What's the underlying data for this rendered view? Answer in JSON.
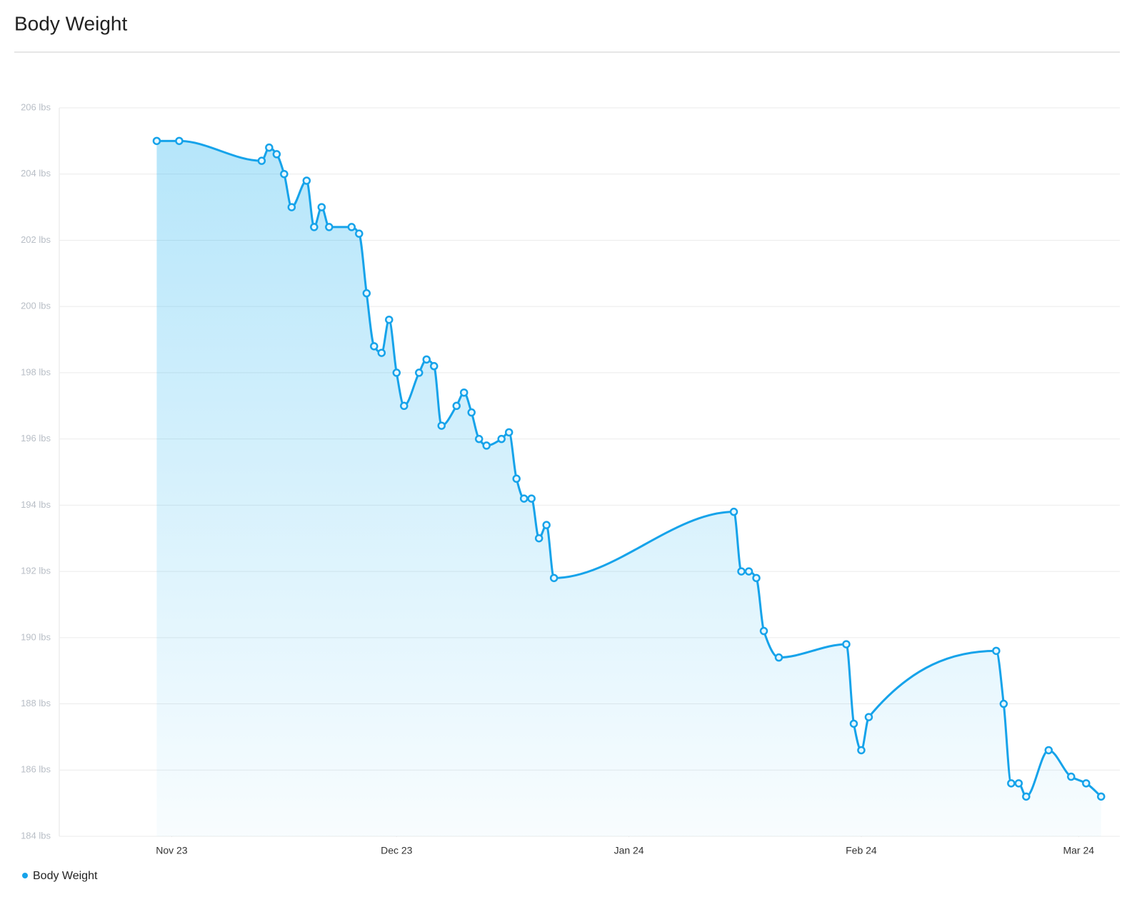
{
  "chart_data": {
    "type": "area",
    "title": "Body Weight",
    "x": [
      -2,
      1,
      12,
      13,
      14,
      15,
      16,
      18,
      19,
      20,
      21,
      24,
      25,
      26,
      27,
      28,
      29,
      30,
      31,
      33,
      34,
      35,
      36,
      38,
      39,
      40,
      41,
      42,
      44,
      45,
      46,
      47,
      48,
      49,
      50,
      51,
      75,
      76,
      77,
      78,
      79,
      81,
      90,
      91,
      92,
      93,
      110,
      111,
      112,
      113,
      114,
      117,
      120,
      122,
      124
    ],
    "series": [
      {
        "name": "Body Weight",
        "color": "#16a3ea",
        "values": [
          205.0,
          205.0,
          204.4,
          204.8,
          204.6,
          204.0,
          203.0,
          203.8,
          202.4,
          203.0,
          202.4,
          202.4,
          202.2,
          200.4,
          198.8,
          198.6,
          199.6,
          198.0,
          197.0,
          198.0,
          198.4,
          198.2,
          196.4,
          197.0,
          197.4,
          196.8,
          196.0,
          195.8,
          196.0,
          196.2,
          194.8,
          194.2,
          194.2,
          193.0,
          193.4,
          191.8,
          193.8,
          192.0,
          192.0,
          191.8,
          190.2,
          189.4,
          189.8,
          187.4,
          186.6,
          187.6,
          189.6,
          188.0,
          185.6,
          185.6,
          185.2,
          186.6,
          185.8,
          185.6,
          185.2
        ]
      }
    ],
    "xlim": [
      -15,
      126.5
    ],
    "xticks": [
      {
        "value": 0,
        "label": "Nov 23"
      },
      {
        "value": 30,
        "label": "Dec 23"
      },
      {
        "value": 61,
        "label": "Jan 24"
      },
      {
        "value": 92,
        "label": "Feb 24"
      },
      {
        "value": 121,
        "label": "Mar 24"
      }
    ],
    "ylim": [
      184,
      206
    ],
    "yticks": [
      {
        "value": 184,
        "label": "184 lbs"
      },
      {
        "value": 186,
        "label": "186 lbs"
      },
      {
        "value": 188,
        "label": "188 lbs"
      },
      {
        "value": 190,
        "label": "190 lbs"
      },
      {
        "value": 192,
        "label": "192 lbs"
      },
      {
        "value": 194,
        "label": "194 lbs"
      },
      {
        "value": 196,
        "label": "196 lbs"
      },
      {
        "value": 198,
        "label": "198 lbs"
      },
      {
        "value": 200,
        "label": "200 lbs"
      },
      {
        "value": 202,
        "label": "202 lbs"
      },
      {
        "value": 204,
        "label": "204 lbs"
      },
      {
        "value": 206,
        "label": "206 lbs"
      }
    ],
    "grid": true
  }
}
